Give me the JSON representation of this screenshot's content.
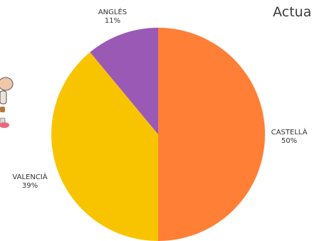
{
  "header": {
    "title": "Actua"
  },
  "chart_data": {
    "type": "pie",
    "slices": [
      {
        "label": "CASTELLÀ",
        "value": 50,
        "percent_label": "50%",
        "color": "#FF7F36"
      },
      {
        "label": "VALENCIÀ",
        "value": 39,
        "percent_label": "39%",
        "color": "#F8C400"
      },
      {
        "label": "ANGLÉS",
        "value": 11,
        "percent_label": "11%",
        "color": "#9B59B6"
      }
    ]
  },
  "decor": {
    "cartoon_icon": "child-illustration-icon"
  }
}
